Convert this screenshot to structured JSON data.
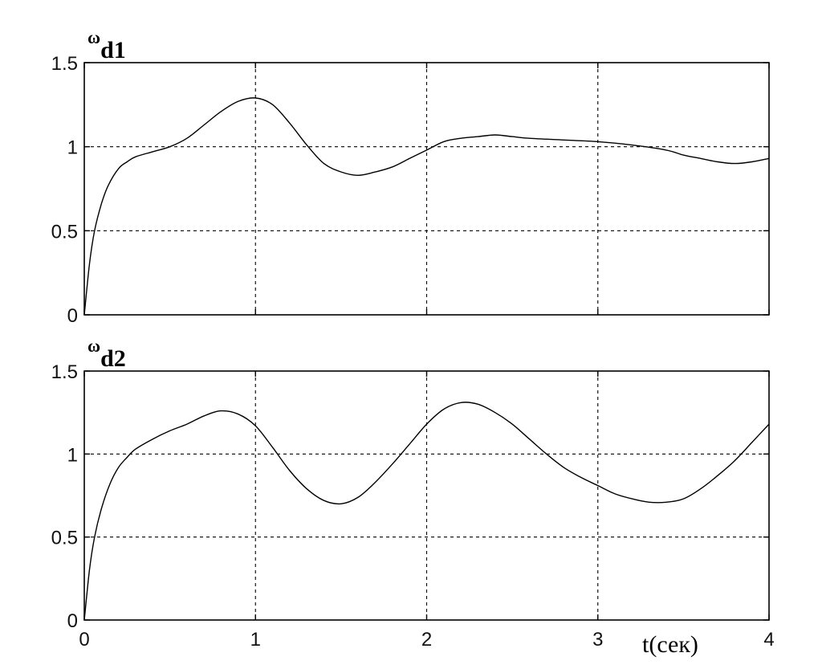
{
  "chart_data": [
    {
      "type": "line",
      "ylabel_symbol": "ω",
      "ylabel_sub": "d1",
      "xlim": [
        0,
        4
      ],
      "ylim": [
        0,
        1.5
      ],
      "yticks": [
        "0",
        "0.5",
        "1",
        "1.5"
      ],
      "xticks": [
        "0",
        "1",
        "2",
        "3",
        "4"
      ],
      "show_xtick_labels": false,
      "grid": true,
      "series": [
        {
          "x": [
            0,
            0.03,
            0.06,
            0.1,
            0.14,
            0.2,
            0.25,
            0.3,
            0.4,
            0.5,
            0.6,
            0.7,
            0.8,
            0.9,
            1.0,
            1.1,
            1.2,
            1.3,
            1.4,
            1.5,
            1.6,
            1.7,
            1.8,
            1.9,
            2.0,
            2.1,
            2.2,
            2.3,
            2.4,
            2.5,
            2.6,
            2.8,
            3.0,
            3.2,
            3.4,
            3.5,
            3.6,
            3.7,
            3.8,
            3.9,
            4.0
          ],
          "y": [
            0,
            0.3,
            0.5,
            0.66,
            0.77,
            0.87,
            0.91,
            0.94,
            0.97,
            1.0,
            1.05,
            1.13,
            1.21,
            1.27,
            1.29,
            1.25,
            1.14,
            1.01,
            0.9,
            0.85,
            0.83,
            0.85,
            0.88,
            0.93,
            0.98,
            1.03,
            1.05,
            1.06,
            1.07,
            1.06,
            1.05,
            1.04,
            1.03,
            1.01,
            0.98,
            0.95,
            0.93,
            0.91,
            0.9,
            0.91,
            0.93
          ]
        }
      ]
    },
    {
      "type": "line",
      "ylabel_symbol": "ω",
      "ylabel_sub": "d2",
      "xlabel": "t(сек)",
      "xlim": [
        0,
        4
      ],
      "ylim": [
        0,
        1.5
      ],
      "yticks": [
        "0",
        "0.5",
        "1",
        "1.5"
      ],
      "xticks": [
        "0",
        "1",
        "2",
        "3",
        "4"
      ],
      "show_xtick_labels": true,
      "grid": true,
      "series": [
        {
          "x": [
            0,
            0.03,
            0.06,
            0.1,
            0.15,
            0.2,
            0.25,
            0.3,
            0.4,
            0.5,
            0.6,
            0.7,
            0.8,
            0.9,
            1.0,
            1.1,
            1.2,
            1.3,
            1.4,
            1.5,
            1.6,
            1.7,
            1.8,
            1.9,
            2.0,
            2.1,
            2.2,
            2.3,
            2.4,
            2.5,
            2.6,
            2.7,
            2.8,
            2.9,
            3.0,
            3.1,
            3.2,
            3.3,
            3.4,
            3.5,
            3.6,
            3.7,
            3.8,
            3.9,
            4.0
          ],
          "y": [
            0,
            0.3,
            0.5,
            0.67,
            0.82,
            0.92,
            0.98,
            1.03,
            1.09,
            1.14,
            1.18,
            1.23,
            1.26,
            1.24,
            1.17,
            1.04,
            0.9,
            0.79,
            0.72,
            0.7,
            0.74,
            0.83,
            0.94,
            1.06,
            1.18,
            1.27,
            1.31,
            1.3,
            1.25,
            1.18,
            1.09,
            1.0,
            0.92,
            0.86,
            0.81,
            0.76,
            0.73,
            0.71,
            0.71,
            0.73,
            0.79,
            0.87,
            0.96,
            1.07,
            1.18
          ]
        }
      ]
    }
  ]
}
